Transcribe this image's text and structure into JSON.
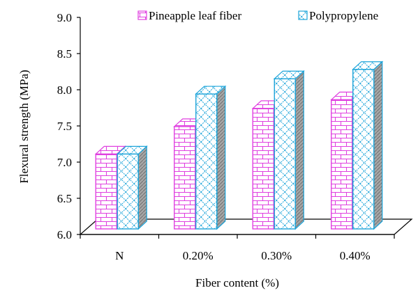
{
  "chart_data": {
    "type": "bar",
    "style": "3d-clustered-column",
    "title": "",
    "xlabel": "Fiber content (%)",
    "ylabel": "Flexural strength  (MPa)",
    "categories": [
      "N",
      "0.20%",
      "0.30%",
      "0.40%"
    ],
    "series": [
      {
        "name": "Pineapple leaf fiber",
        "values": [
          7.15,
          7.53,
          7.78,
          7.9
        ],
        "color": "#e040e0",
        "pattern": "brick"
      },
      {
        "name": "Polypropylene",
        "values": [
          7.15,
          7.98,
          8.19,
          8.32
        ],
        "color": "#1aa3d9",
        "pattern": "diagonal-lattice"
      }
    ],
    "ylim": [
      6.0,
      9.0
    ],
    "yticks": [
      "6.0",
      "6.5",
      "7.0",
      "7.5",
      "8.0",
      "8.5",
      "9.0"
    ],
    "grid": false,
    "legend_position": "top"
  }
}
